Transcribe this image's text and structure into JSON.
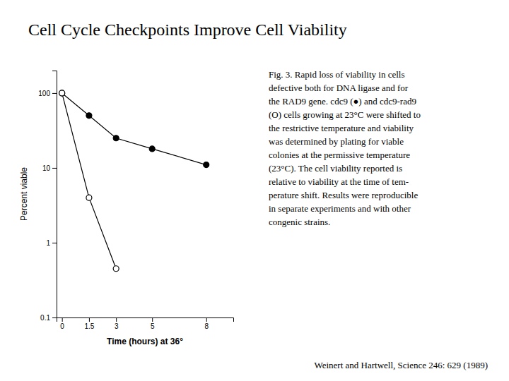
{
  "chart_data": {
    "type": "line",
    "title": "Cell Cycle Checkpoints Improve Cell Viability",
    "citation": "Weinert and Hartwell, Science 246: 629 (1989)",
    "caption": [
      "Fig. 3.  Rapid loss of viability in cells",
      "defective both for DNA ligase and for",
      "the RAD9 gene. cdc9 (●) and cdc9-rad9",
      "(O) cells growing at 23°C were shifted to",
      "the restrictive temperature and viability",
      "was determined by plating for viable",
      "colonies at the permissive temperature",
      "(23°C). The cell viability reported is",
      "relative to viability at the time of tem-",
      "perature shift. Results were reproducible",
      "in separate experiments and with other",
      "congenic strains."
    ],
    "xlabel": "Time (hours) at 36°",
    "ylabel": "Percent viable",
    "log": "y",
    "grid": false,
    "series": [
      {
        "x": [
          0,
          1.5,
          3,
          5,
          8
        ],
        "values": [
          100,
          50,
          25,
          18,
          11
        ],
        "color": "#000000",
        "marker": "filled-circle",
        "line_style": "solid"
      },
      {
        "x": [
          0,
          1.5,
          3
        ],
        "values": [
          100,
          4,
          0.45
        ],
        "color": "#000000",
        "marker": "open-circle",
        "line_style": "solid"
      }
    ],
    "xlim": [
      -0.3,
      9.5
    ],
    "xticks": [
      0,
      1.5,
      3,
      5,
      8
    ],
    "ylim": [
      0.1,
      200
    ],
    "yticks": [
      0.1,
      1,
      10,
      100
    ]
  }
}
